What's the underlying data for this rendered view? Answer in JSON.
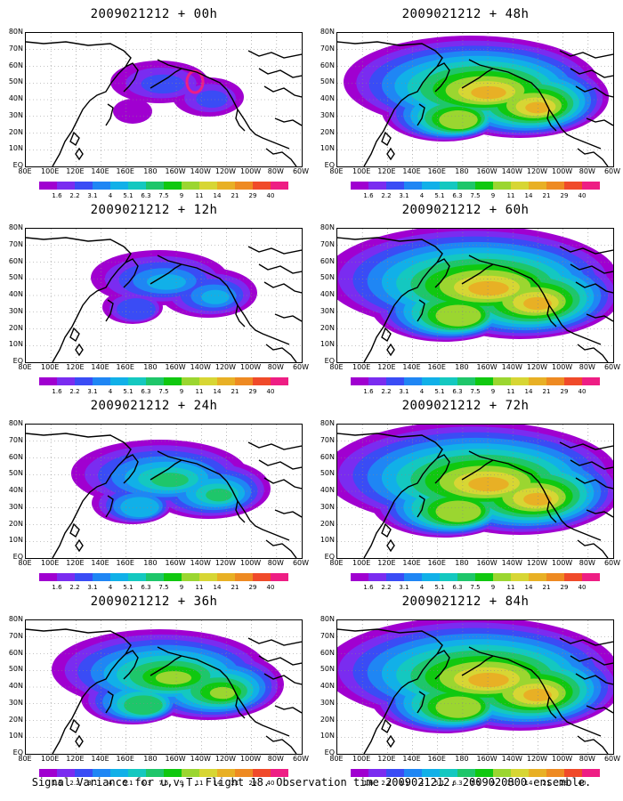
{
  "panels": [
    {
      "title": "2009021212 + 00h",
      "intensity": 0
    },
    {
      "title": "2009021212 + 48h",
      "intensity": 4
    },
    {
      "title": "2009021212 + 12h",
      "intensity": 1
    },
    {
      "title": "2009021212 + 60h",
      "intensity": 5
    },
    {
      "title": "2009021212 + 24h",
      "intensity": 2
    },
    {
      "title": "2009021212 + 72h",
      "intensity": 5
    },
    {
      "title": "2009021212 + 36h",
      "intensity": 3
    },
    {
      "title": "2009021212 + 84h",
      "intensity": 5
    }
  ],
  "lat_labels": [
    "80N",
    "70N",
    "60N",
    "50N",
    "40N",
    "30N",
    "20N",
    "10N",
    "EQ"
  ],
  "lon_labels": [
    "80E",
    "100E",
    "120E",
    "140E",
    "160E",
    "180",
    "160W",
    "140W",
    "120W",
    "100W",
    "80W",
    "60W"
  ],
  "colorbar": {
    "labels": [
      "1.6",
      "2.2",
      "3.1",
      "4",
      "5.1",
      "6.3",
      "7.5",
      "9",
      "11",
      "14",
      "21",
      "29",
      "40"
    ],
    "colors": [
      "#a000d0",
      "#7a2cf0",
      "#3a4cf5",
      "#1f86f4",
      "#11b0e8",
      "#14c8c0",
      "#1ec66a",
      "#10c810",
      "#9bd630",
      "#d7d634",
      "#e8b025",
      "#ee8a22",
      "#f04a2a",
      "#ee1e84"
    ]
  },
  "caption": "Signal Variance for u,v,T. Flight 18. Observation time 2009021212. 2009020800 ensemble."
}
